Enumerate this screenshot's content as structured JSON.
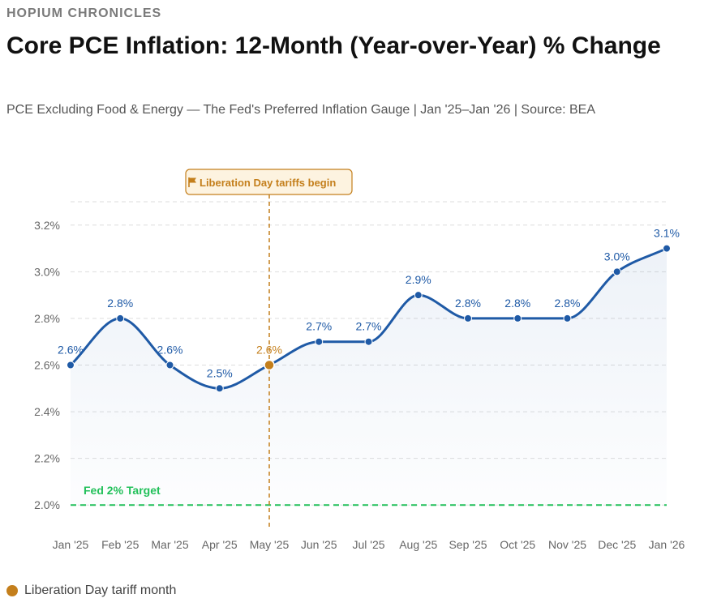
{
  "header": {
    "brand": "HOPIUM CHRONICLES",
    "title": "Core PCE Inflation: 12-Month (Year-over-Year) % Change",
    "subtitle": "PCE Excluding Food & Energy — The Fed's Preferred Inflation Gauge | Jan '25–Jan '26 | Source: BEA"
  },
  "colors": {
    "line": "#1f5aa6",
    "highlight": "#c47f1c",
    "target": "#22c05a",
    "grid": "#dddddd",
    "tick": "#666666"
  },
  "chart_data": {
    "type": "line",
    "title": "Core PCE Inflation: 12-Month (Year-over-Year) % Change",
    "xlabel": "",
    "ylabel": "",
    "categories": [
      "Jan '25",
      "Feb '25",
      "Mar '25",
      "Apr '25",
      "May '25",
      "Jun '25",
      "Jul '25",
      "Aug '25",
      "Sep '25",
      "Oct '25",
      "Nov '25",
      "Dec '25",
      "Jan '26"
    ],
    "values": [
      2.6,
      2.8,
      2.6,
      2.5,
      2.6,
      2.7,
      2.7,
      2.9,
      2.8,
      2.8,
      2.8,
      3.0,
      3.1
    ],
    "value_labels": [
      "2.6%",
      "2.8%",
      "2.6%",
      "2.5%",
      "2.6%",
      "2.7%",
      "2.7%",
      "2.9%",
      "2.8%",
      "2.8%",
      "2.8%",
      "3.0%",
      "3.1%"
    ],
    "ylim": [
      1.9,
      3.3
    ],
    "yticks": [
      2.0,
      2.2,
      2.4,
      2.6,
      2.8,
      3.0,
      3.2
    ],
    "ytick_labels": [
      "2.0%",
      "2.2%",
      "2.4%",
      "2.6%",
      "2.8%",
      "3.0%",
      "3.2%"
    ],
    "grid": true,
    "highlight_index": 4,
    "target_line": {
      "value": 2.0,
      "label": "Fed 2% Target"
    },
    "annotation": {
      "index": 4,
      "label": "Liberation Day tariffs begin",
      "icon": "flag-icon"
    }
  },
  "legend": {
    "label": "Liberation Day tariff month"
  }
}
